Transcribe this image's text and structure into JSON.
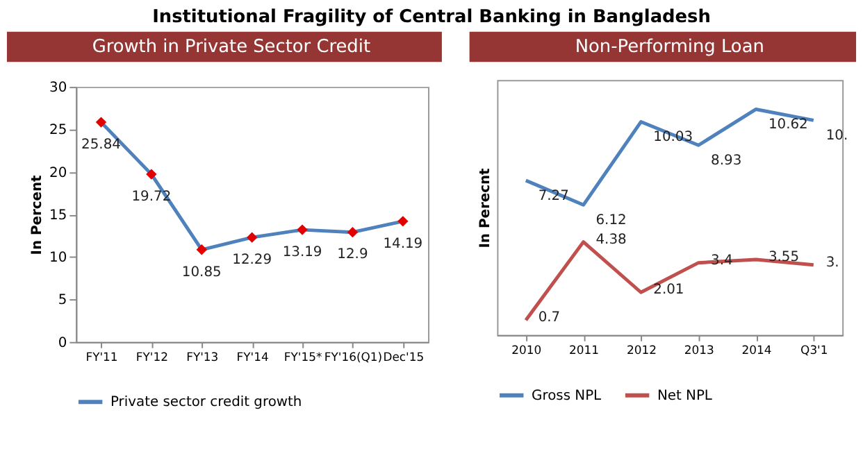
{
  "chart_data": [
    {
      "type": "line",
      "title": "Growth in Private Sector Credit",
      "ylabel": "In Percent",
      "annotations": [
        "Institutional Fragility of Central Banking in Bangladesh"
      ],
      "categories": [
        "FY'11",
        "FY'12",
        "FY'13",
        "FY'14",
        "FY'15*",
        "FY'16(Q1)",
        "Dec'15"
      ],
      "series": [
        {
          "name": "Private sector credit growth",
          "color": "#4f81bd",
          "values": [
            25.84,
            19.72,
            10.85,
            12.29,
            13.19,
            12.9,
            14.19
          ]
        }
      ],
      "ylim": [
        0,
        30
      ],
      "yticks": [
        0,
        5,
        10,
        15,
        20,
        25,
        30
      ],
      "marker": "diamond",
      "data_labels": true,
      "grid": false,
      "legend": "bottom"
    },
    {
      "type": "line",
      "title": "Non-Performing Loan",
      "ylabel": "In Perecnt",
      "categories": [
        "2010",
        "2011",
        "2012",
        "2013",
        "2014",
        "Q3'1"
      ],
      "series": [
        {
          "name": "Gross NPL",
          "color": "#4f81bd",
          "values": [
            7.27,
            6.12,
            10.03,
            8.93,
            10.62,
            10.1
          ],
          "value_labels": [
            "7.27",
            "6.12",
            "10.03",
            "8.93",
            "10.62",
            "10."
          ]
        },
        {
          "name": "Net NPL",
          "color": "#c0504d",
          "values": [
            0.7,
            4.38,
            2.01,
            3.4,
            3.55,
            3.3
          ],
          "value_labels": [
            "0.7",
            "4.38",
            "2.01",
            "3.4",
            "3.55",
            "3."
          ]
        }
      ],
      "ylim": [
        0,
        12
      ],
      "tick_labels": "x",
      "marker": "none",
      "grid": false,
      "legend": "bottom"
    }
  ]
}
